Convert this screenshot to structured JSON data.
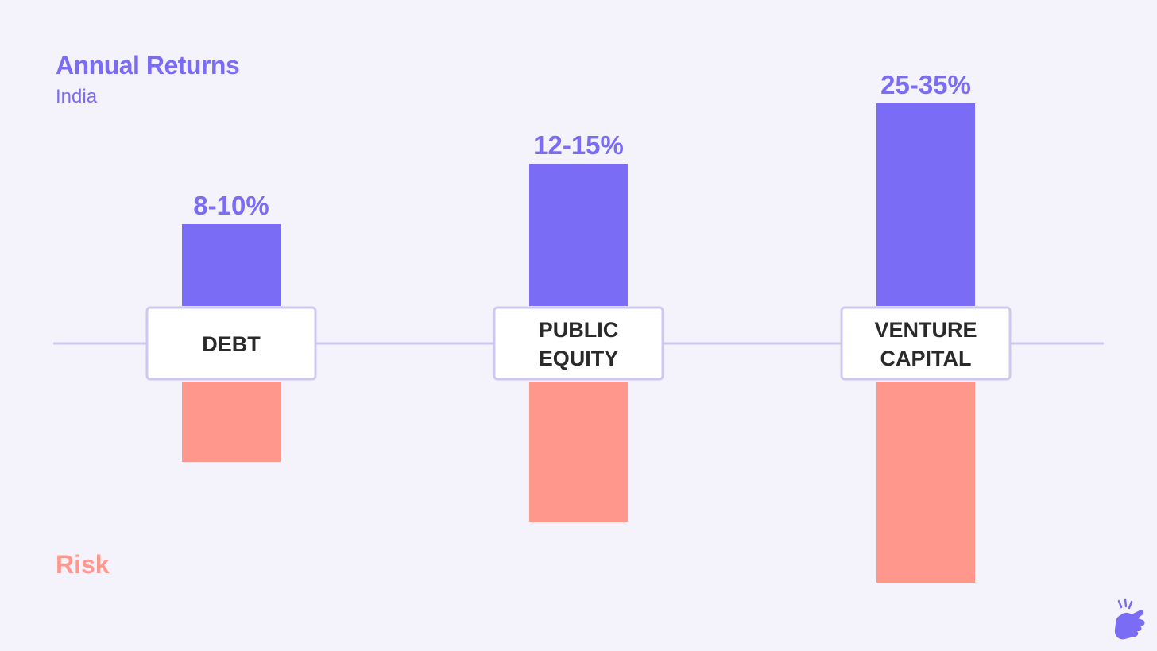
{
  "chart_data": {
    "type": "bar",
    "title": "Annual Returns",
    "subtitle": "India",
    "risk_label": "Risk",
    "categories": [
      {
        "lines": [
          "DEBT"
        ]
      },
      {
        "lines": [
          "PUBLIC",
          "EQUITY"
        ]
      },
      {
        "lines": [
          "VENTURE",
          "CAPITAL"
        ]
      }
    ],
    "series": [
      {
        "name": "Annual Returns",
        "labels": [
          "8-10%",
          "12-15%",
          "25-35%"
        ],
        "values": [
          1,
          2,
          3
        ],
        "color": "#7b6cf6"
      },
      {
        "name": "Risk",
        "values": [
          1,
          2,
          3
        ],
        "color": "#ff978d"
      }
    ],
    "colors": {
      "background": "#f4f3fc",
      "axis": "#cdc8f0",
      "box_border": "#cdc8f0",
      "box_fill": "#ffffff",
      "category_text": "#2a2a2a"
    }
  },
  "logo": {
    "icon": "snapping-hand-icon",
    "color": "#7b6cf6"
  }
}
